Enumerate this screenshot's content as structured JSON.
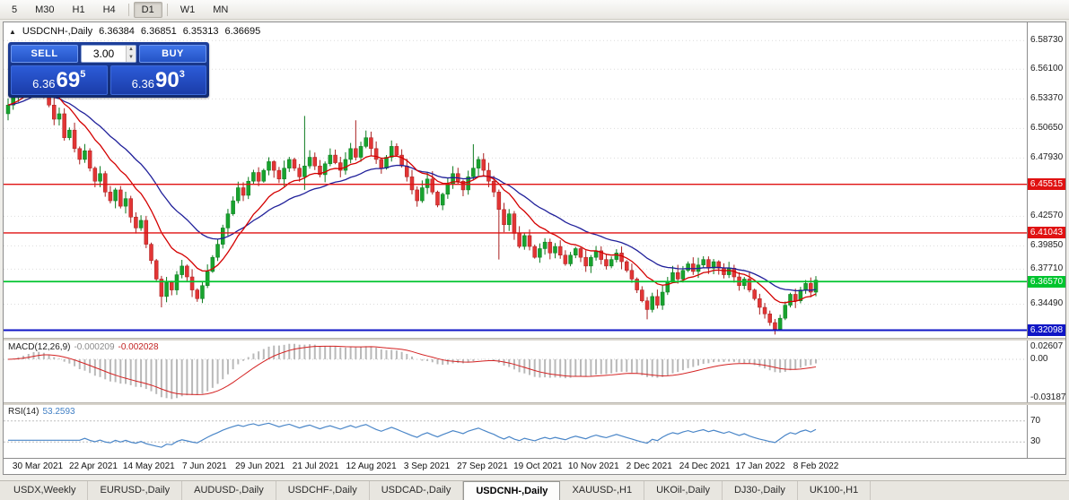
{
  "toolbar": {
    "timeframes": [
      {
        "label": "5",
        "active": false,
        "sep_after": false
      },
      {
        "label": "M30",
        "active": false,
        "sep_after": false
      },
      {
        "label": "H1",
        "active": false,
        "sep_after": false
      },
      {
        "label": "H4",
        "active": false,
        "sep_after": true
      },
      {
        "label": "D1",
        "active": true,
        "sep_after": true
      },
      {
        "label": "W1",
        "active": false,
        "sep_after": false
      },
      {
        "label": "MN",
        "active": false,
        "sep_after": false
      }
    ]
  },
  "trade_panel": {
    "sell_label": "SELL",
    "buy_label": "BUY",
    "lot_value": "3.00",
    "sell_price_prefix": "6.36",
    "sell_price_big": "69",
    "sell_price_sup": "5",
    "buy_price_prefix": "6.36",
    "buy_price_big": "90",
    "buy_price_sup": "3"
  },
  "bottom_tabs": {
    "items": [
      "USDX,Weekly",
      "EURUSD-,Daily",
      "AUDUSD-,Daily",
      "USDCHF-,Daily",
      "USDCAD-,Daily",
      "USDCNH-,Daily",
      "XAUUSD-,H1",
      "UKOil-,Daily",
      "DJ30-,Daily",
      "UK100-,H1"
    ],
    "active_index": 5
  },
  "chart_data": {
    "type": "candlestick",
    "main": {
      "title": "USDCNH-,Daily",
      "ohlc_display": {
        "open": "6.36384",
        "high": "6.36851",
        "low": "6.35313",
        "close": "6.36695"
      },
      "ylim": [
        6.314,
        6.604
      ],
      "candle_region_frac": 0.8,
      "wick": 0.004,
      "first_open": 6.52,
      "closes": [
        6.528,
        6.538,
        6.545,
        6.552,
        6.56,
        6.566,
        6.552,
        6.54,
        6.528,
        6.515,
        6.52,
        6.498,
        6.505,
        6.488,
        6.478,
        6.486,
        6.47,
        6.458,
        6.465,
        6.448,
        6.44,
        6.45,
        6.435,
        6.442,
        6.425,
        6.415,
        6.422,
        6.4,
        6.385,
        6.368,
        6.352,
        6.365,
        6.358,
        6.372,
        6.38,
        6.37,
        6.358,
        6.35,
        6.362,
        6.375,
        6.388,
        6.4,
        6.415,
        6.428,
        6.44,
        6.452,
        6.445,
        6.458,
        6.466,
        6.458,
        6.468,
        6.476,
        6.468,
        6.46,
        6.47,
        6.478,
        6.47,
        6.462,
        6.472,
        6.48,
        6.472,
        6.464,
        6.474,
        6.482,
        6.475,
        6.468,
        6.478,
        6.488,
        6.48,
        6.49,
        6.498,
        6.488,
        6.478,
        6.47,
        6.48,
        6.49,
        6.482,
        6.472,
        6.462,
        6.45,
        6.44,
        6.452,
        6.46,
        6.448,
        6.436,
        6.446,
        6.455,
        6.465,
        6.458,
        6.45,
        6.462,
        6.47,
        6.478,
        6.468,
        6.458,
        6.448,
        6.432,
        6.418,
        6.428,
        6.41,
        6.398,
        6.408,
        6.398,
        6.388,
        6.396,
        6.402,
        6.392,
        6.398,
        6.39,
        6.382,
        6.39,
        6.396,
        6.388,
        6.38,
        6.388,
        6.394,
        6.386,
        6.38,
        6.386,
        6.392,
        6.384,
        6.376,
        6.368,
        6.358,
        6.348,
        6.34,
        6.352,
        6.344,
        6.356,
        6.366,
        6.374,
        6.368,
        6.376,
        6.382,
        6.375,
        6.381,
        6.386,
        6.378,
        6.384,
        6.378,
        6.372,
        6.378,
        6.37,
        6.362,
        6.368,
        6.358,
        6.35,
        6.342,
        6.336,
        6.328,
        6.322,
        6.332,
        6.344,
        6.354,
        6.348,
        6.358,
        6.364,
        6.356,
        6.367
      ],
      "spikes": [
        {
          "i": 5,
          "h": 6.574
        },
        {
          "i": 30,
          "l": 6.342
        },
        {
          "i": 58,
          "h": 6.518,
          "l": 6.45
        },
        {
          "i": 68,
          "h": 6.514
        },
        {
          "i": 91,
          "h": 6.492
        },
        {
          "i": 96,
          "l": 6.386
        },
        {
          "i": 125,
          "l": 6.331
        },
        {
          "i": 150,
          "l": 6.317
        }
      ],
      "colors": {
        "up": "#18a32e",
        "up_stroke": "#0b7a1e",
        "down": "#e23535",
        "down_stroke": "#a81f1f"
      },
      "ma": {
        "fast": {
          "period": 12,
          "color": "#d40000"
        },
        "slow": {
          "period": 26,
          "color": "#20209a"
        }
      },
      "axis_ticks": [
        {
          "v": 6.5873,
          "label": "6.58730"
        },
        {
          "v": 6.561,
          "label": "6.56100"
        },
        {
          "v": 6.5337,
          "label": "6.53370"
        },
        {
          "v": 6.5065,
          "label": "6.50650"
        },
        {
          "v": 6.4793,
          "label": "6.47930"
        },
        {
          "v": 6.4257,
          "label": "6.42570"
        },
        {
          "v": 6.3985,
          "label": "6.39850"
        },
        {
          "v": 6.3771,
          "label": "6.37710"
        },
        {
          "v": 6.3449,
          "label": "6.34490"
        }
      ],
      "levels": [
        {
          "v": 6.45515,
          "label": "6.45515",
          "color": "#e01212",
          "width": 1.4
        },
        {
          "v": 6.41043,
          "label": "6.41043",
          "color": "#e01212",
          "width": 1.4
        },
        {
          "v": 6.3657,
          "label": "6.36570",
          "color": "#00c42e",
          "width": 1.8
        },
        {
          "v": 6.32098,
          "label": "6.32098",
          "color": "#1016c6",
          "width": 2.0
        }
      ],
      "x_tick_labels": [
        "30 Mar 2021",
        "22 Apr 2021",
        "14 May 2021",
        "7 Jun 2021",
        "29 Jun 2021",
        "21 Jul 2021",
        "12 Aug 2021",
        "3 Sep 2021",
        "27 Sep 2021",
        "19 Oct 2021",
        "10 Nov 2021",
        "2 Dec 2021",
        "24 Dec 2021",
        "17 Jan 2022",
        "8 Feb 2022"
      ]
    },
    "macd": {
      "label": "MACD(12,26,9)",
      "value_main": "-0.000209",
      "value_signal": "-0.002028",
      "fast": 12,
      "slow": 26,
      "signal": 9,
      "ticks": {
        "top": "0.02607",
        "zero": "0.00",
        "bottom": "-0.03187"
      },
      "colors": {
        "hist": "#b9b9b9",
        "signal": "#d42222"
      }
    },
    "rsi": {
      "label": "RSI(14)",
      "value": "53.2593",
      "period": 14,
      "levels": [
        70,
        30
      ],
      "tick_labels": [
        "70",
        "30"
      ],
      "color": "#4a86c8"
    }
  }
}
